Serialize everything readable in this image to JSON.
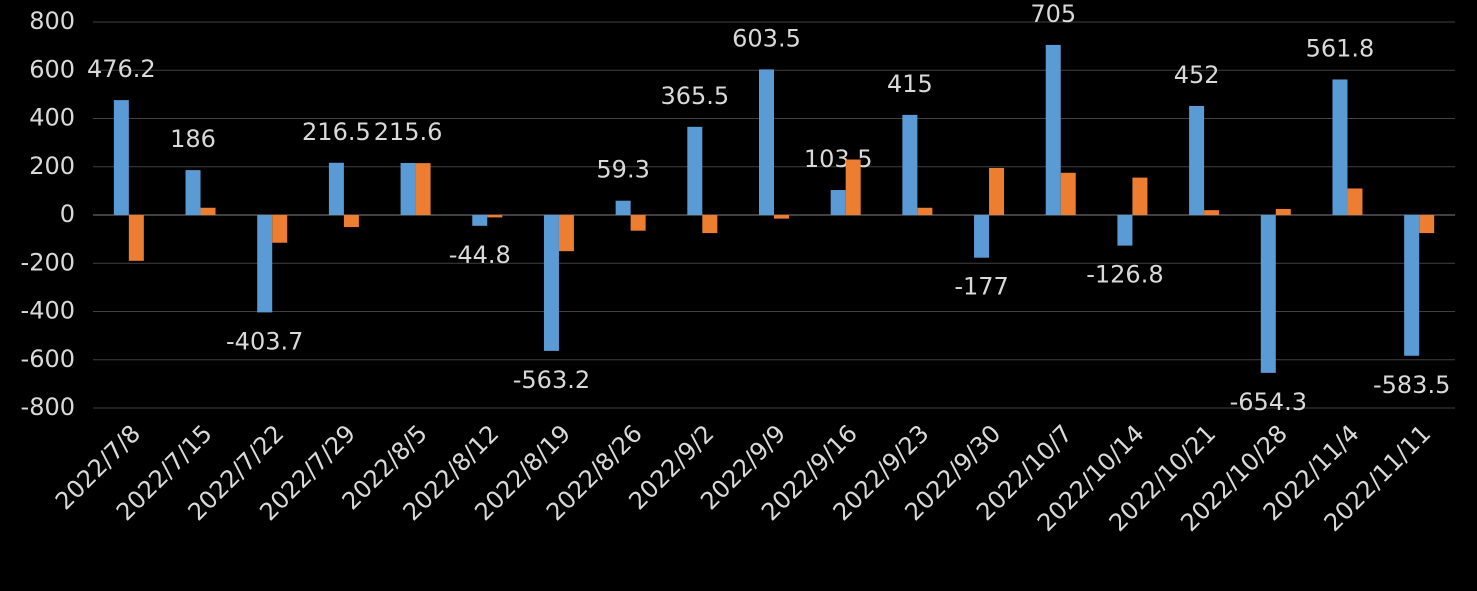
{
  "chart_data": {
    "type": "bar",
    "categories": [
      "2022/7/8",
      "2022/7/15",
      "2022/7/22",
      "2022/7/29",
      "2022/8/5",
      "2022/8/12",
      "2022/8/19",
      "2022/8/26",
      "2022/9/2",
      "2022/9/9",
      "2022/9/16",
      "2022/9/23",
      "2022/9/30",
      "2022/10/7",
      "2022/10/14",
      "2022/10/21",
      "2022/10/28",
      "2022/11/4",
      "2022/11/11"
    ],
    "series": [
      {
        "color": "#5b9bd5",
        "data_labels": true,
        "values": [
          476.2,
          186,
          -403.7,
          216.5,
          215.6,
          -44.8,
          -563.2,
          59.3,
          365.5,
          603.5,
          103.5,
          415,
          -177,
          705,
          -126.8,
          452,
          -654.3,
          561.8,
          -583.5
        ]
      },
      {
        "color": "#ed7d31",
        "data_labels": false,
        "values": [
          -190,
          30,
          -115,
          -50,
          215,
          -10,
          -150,
          -65,
          -75,
          -15,
          230,
          30,
          195,
          175,
          155,
          20,
          25,
          110,
          -75
        ]
      }
    ],
    "ylim": [
      -800,
      800
    ],
    "yticks": [
      -800,
      -600,
      -400,
      -200,
      0,
      200,
      400,
      600,
      800
    ],
    "grid": true
  }
}
